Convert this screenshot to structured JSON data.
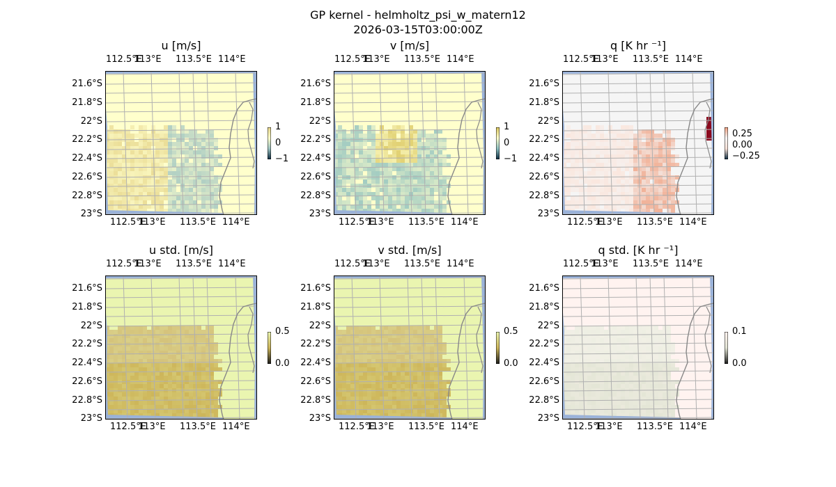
{
  "figure": {
    "title": "GP kernel - helmholtz_psi_w_matern12",
    "timestamp": "2026-03-15T03:00:00Z"
  },
  "map": {
    "lon_ticks": [
      "112.5°E",
      "113°E",
      "113.5°E",
      "114°E"
    ],
    "lat_ticks": [
      "21.6°S",
      "21.8°S",
      "22°S",
      "22.2°S",
      "22.4°S",
      "22.6°S",
      "22.8°S",
      "23°S"
    ]
  },
  "panels": [
    {
      "id": "u",
      "title": "u [m/s]",
      "colorbar": [
        "1",
        "0",
        "−1"
      ],
      "background": "#FFFFCC",
      "warm": "#E6D58A",
      "cool": "#9EC4C2"
    },
    {
      "id": "v",
      "title": "v [m/s]",
      "colorbar": [
        "1",
        "0",
        "−1"
      ],
      "background": "#FFFFCC",
      "warm": "#D9C45A",
      "cool": "#8CBFBF"
    },
    {
      "id": "q",
      "title": "q [K hr ⁻¹]",
      "colorbar": [
        "0.25",
        "0.00",
        "−0.25"
      ],
      "background": "#F5F5F5",
      "warm": "#F0A080",
      "cool": "#FBE3D8"
    },
    {
      "id": "us",
      "title": "u std. [m/s]",
      "colorbar": [
        "0.5",
        "0.0"
      ],
      "background": "#EAF5B0",
      "warm": "#CDB65A",
      "cool": "#D4C27A"
    },
    {
      "id": "vs",
      "title": "v std. [m/s]",
      "colorbar": [
        "0.5",
        "0.0"
      ],
      "background": "#EAF5B0",
      "warm": "#CDB65A",
      "cool": "#D4C27A"
    },
    {
      "id": "qs",
      "title": "q std. [K hr ⁻¹]",
      "colorbar": [
        "0.1",
        "0.0"
      ],
      "background": "#FFF3F0",
      "warm": "#E4E6D6",
      "cool": "#EDEEE2"
    }
  ],
  "colors": {
    "ocean": "#9AB2D9",
    "coast": "#888888",
    "grid": "#B0B0B0",
    "q_extreme": "#8B0A1E"
  }
}
